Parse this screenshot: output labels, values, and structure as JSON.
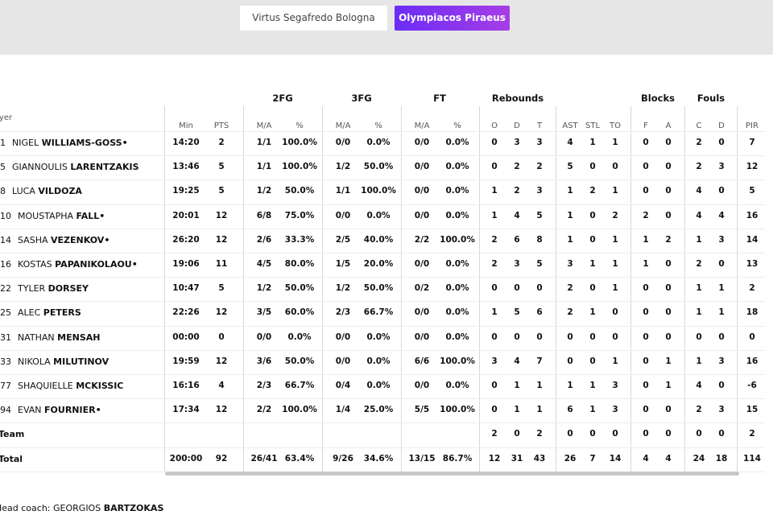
{
  "tabs": [
    "Virtus Segafredo Bologna",
    "Olympiacos Piraeus"
  ],
  "table": {
    "groups": [
      "2FG",
      "3FG",
      "FT",
      "Rebounds",
      "Blocks",
      "Fouls"
    ],
    "player_header": "Player",
    "columns": [
      "Min",
      "PTS",
      "M/A",
      "%",
      "M/A",
      "%",
      "M/A",
      "%",
      "O",
      "D",
      "T",
      "AST",
      "STL",
      "TO",
      "F",
      "A",
      "C",
      "D",
      "PIR"
    ],
    "rows": [
      {
        "number": "1",
        "first": "NIGEL",
        "last": "WILLIAMS-GOSS•",
        "stats": [
          "14:20",
          "2",
          "1/1",
          "100.0%",
          "0/0",
          "0.0%",
          "0/0",
          "0.0%",
          "0",
          "3",
          "3",
          "4",
          "1",
          "1",
          "0",
          "0",
          "2",
          "0",
          "7"
        ]
      },
      {
        "number": "5",
        "first": "GIANNOULIS",
        "last": "LARENTZAKIS",
        "stats": [
          "13:46",
          "5",
          "1/1",
          "100.0%",
          "1/2",
          "50.0%",
          "0/0",
          "0.0%",
          "0",
          "2",
          "2",
          "5",
          "0",
          "0",
          "0",
          "0",
          "2",
          "3",
          "12"
        ]
      },
      {
        "number": "8",
        "first": "LUCA",
        "last": "VILDOZA",
        "stats": [
          "19:25",
          "5",
          "1/2",
          "50.0%",
          "1/1",
          "100.0%",
          "0/0",
          "0.0%",
          "1",
          "2",
          "3",
          "1",
          "2",
          "1",
          "0",
          "0",
          "4",
          "0",
          "5"
        ]
      },
      {
        "number": "10",
        "first": "MOUSTAPHA",
        "last": "FALL•",
        "stats": [
          "20:01",
          "12",
          "6/8",
          "75.0%",
          "0/0",
          "0.0%",
          "0/0",
          "0.0%",
          "1",
          "4",
          "5",
          "1",
          "0",
          "2",
          "2",
          "0",
          "4",
          "4",
          "16"
        ]
      },
      {
        "number": "14",
        "first": "SASHA",
        "last": "VEZENKOV•",
        "stats": [
          "26:20",
          "12",
          "2/6",
          "33.3%",
          "2/5",
          "40.0%",
          "2/2",
          "100.0%",
          "2",
          "6",
          "8",
          "1",
          "0",
          "1",
          "1",
          "2",
          "1",
          "3",
          "14"
        ]
      },
      {
        "number": "16",
        "first": "KOSTAS",
        "last": "PAPANIKOLAOU•",
        "stats": [
          "19:06",
          "11",
          "4/5",
          "80.0%",
          "1/5",
          "20.0%",
          "0/0",
          "0.0%",
          "2",
          "3",
          "5",
          "3",
          "1",
          "1",
          "1",
          "0",
          "2",
          "0",
          "13"
        ]
      },
      {
        "number": "22",
        "first": "TYLER",
        "last": "DORSEY",
        "stats": [
          "10:47",
          "5",
          "1/2",
          "50.0%",
          "1/2",
          "50.0%",
          "0/2",
          "0.0%",
          "0",
          "0",
          "0",
          "2",
          "0",
          "1",
          "0",
          "0",
          "1",
          "1",
          "2"
        ]
      },
      {
        "number": "25",
        "first": "ALEC",
        "last": "PETERS",
        "stats": [
          "22:26",
          "12",
          "3/5",
          "60.0%",
          "2/3",
          "66.7%",
          "0/0",
          "0.0%",
          "1",
          "5",
          "6",
          "2",
          "1",
          "0",
          "0",
          "0",
          "1",
          "1",
          "18"
        ]
      },
      {
        "number": "31",
        "first": "NATHAN",
        "last": "MENSAH",
        "stats": [
          "00:00",
          "0",
          "0/0",
          "0.0%",
          "0/0",
          "0.0%",
          "0/0",
          "0.0%",
          "0",
          "0",
          "0",
          "0",
          "0",
          "0",
          "0",
          "0",
          "0",
          "0",
          "0"
        ]
      },
      {
        "number": "33",
        "first": "NIKOLA",
        "last": "MILUTINOV",
        "stats": [
          "19:59",
          "12",
          "3/6",
          "50.0%",
          "0/0",
          "0.0%",
          "6/6",
          "100.0%",
          "3",
          "4",
          "7",
          "0",
          "0",
          "1",
          "0",
          "1",
          "1",
          "3",
          "16"
        ]
      },
      {
        "number": "77",
        "first": "SHAQUIELLE",
        "last": "MCKISSIC",
        "stats": [
          "16:16",
          "4",
          "2/3",
          "66.7%",
          "0/4",
          "0.0%",
          "0/0",
          "0.0%",
          "0",
          "1",
          "1",
          "1",
          "1",
          "3",
          "0",
          "1",
          "4",
          "0",
          "-6"
        ]
      },
      {
        "number": "94",
        "first": "EVAN",
        "last": "FOURNIER•",
        "stats": [
          "17:34",
          "12",
          "2/2",
          "100.0%",
          "1/4",
          "25.0%",
          "5/5",
          "100.0%",
          "0",
          "1",
          "1",
          "6",
          "1",
          "3",
          "0",
          "0",
          "2",
          "3",
          "15"
        ]
      }
    ],
    "team": {
      "label": "Team",
      "stats": [
        null,
        null,
        null,
        null,
        null,
        null,
        null,
        null,
        "2",
        "0",
        "2",
        "0",
        "0",
        "0",
        "0",
        "0",
        "0",
        "0",
        "2"
      ]
    },
    "total": {
      "label": "Total",
      "stats": [
        "200:00",
        "92",
        "26/41",
        "63.4%",
        "9/26",
        "34.6%",
        "13/15",
        "86.7%",
        "12",
        "31",
        "43",
        "26",
        "7",
        "14",
        "4",
        "4",
        "24",
        "18",
        "114"
      ]
    }
  },
  "coach": {
    "label": "Head coach:",
    "first": "GEORGIOS",
    "last": "BARTZOKAS"
  }
}
